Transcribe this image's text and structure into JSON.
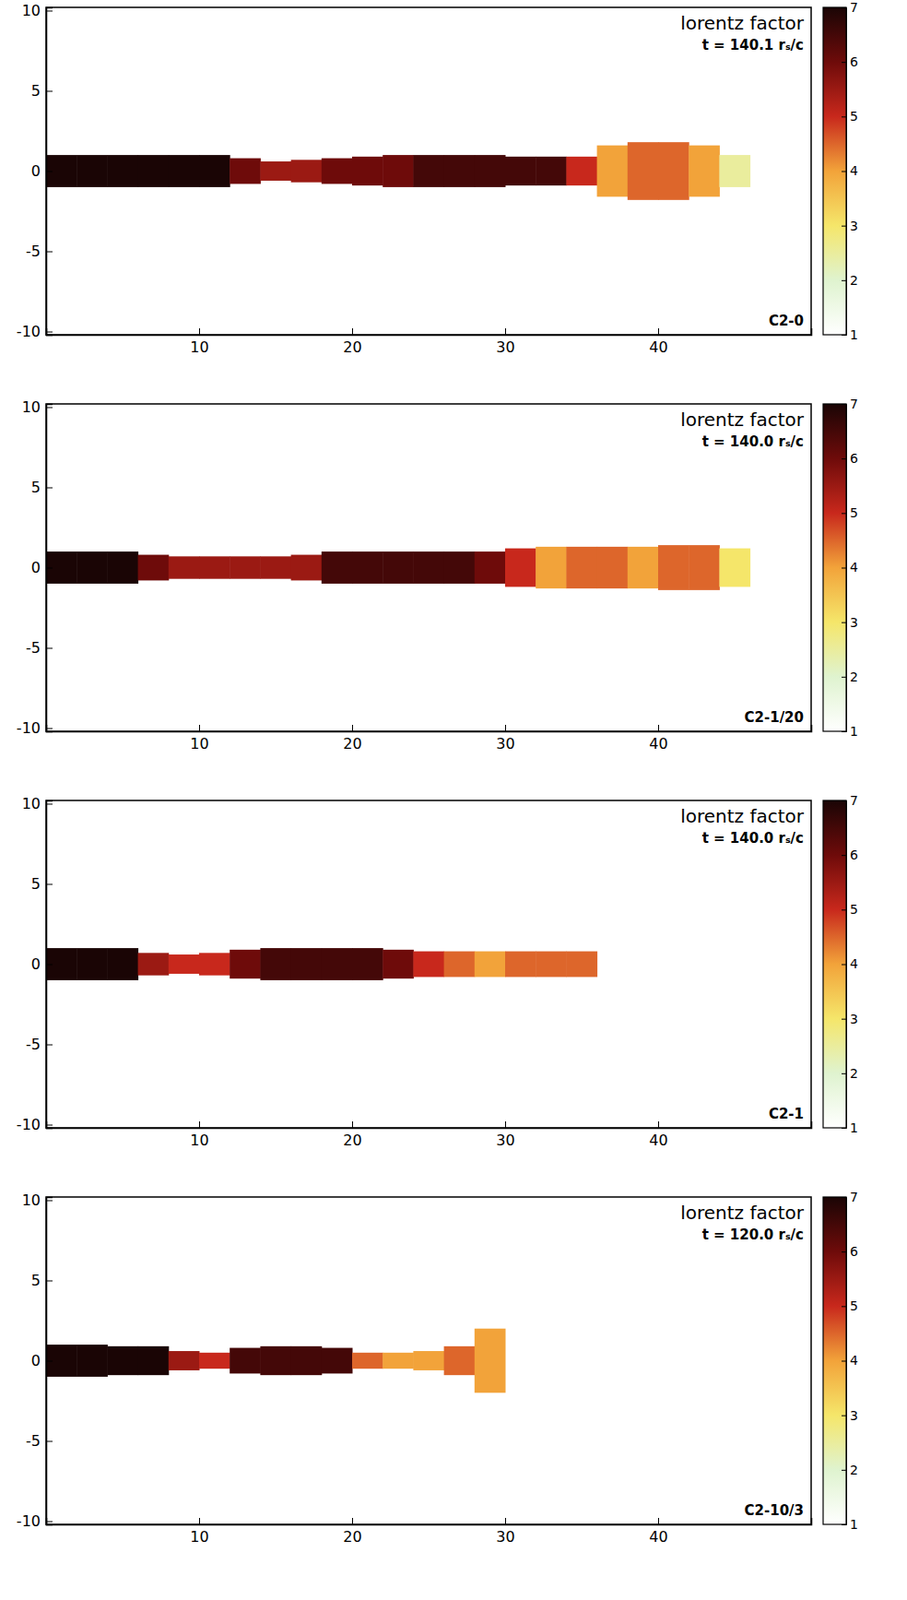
{
  "chart_data": [
    {
      "type": "heatmap",
      "title": "C2-0",
      "subtitle": "lorentz factor",
      "annotation": "t = 140.1 rₛ/c",
      "bins": [
        0,
        2,
        4,
        6,
        8,
        10,
        12,
        14,
        16,
        18,
        20,
        22,
        24,
        26,
        28,
        30,
        32,
        34,
        36,
        38,
        40,
        42,
        44,
        46
      ],
      "values": [
        7,
        7,
        7,
        7,
        7,
        7,
        6,
        5.5,
        5.5,
        6,
        6,
        6,
        6.5,
        6.5,
        6.5,
        6.5,
        6.5,
        5,
        4,
        4.5,
        4.5,
        4,
        2.5
      ],
      "half_width": [
        1,
        1,
        1,
        1,
        1,
        1,
        0.8,
        0.6,
        0.7,
        0.8,
        0.9,
        1,
        1,
        1,
        1,
        0.9,
        0.9,
        0.9,
        1.6,
        1.8,
        1.8,
        1.6,
        1
      ],
      "xlim": [
        0,
        50
      ],
      "ylim": [
        -10.2,
        10.2
      ],
      "xticks": [
        10,
        20,
        30,
        40
      ],
      "yticks": [
        -10,
        -5,
        0,
        5,
        10
      ],
      "zlim": [
        1,
        7
      ],
      "zticks": [
        1,
        2,
        3,
        4,
        5,
        6,
        7
      ]
    },
    {
      "type": "heatmap",
      "title": "C2-1/20",
      "subtitle": "lorentz factor",
      "annotation": "t = 140.0 rₛ/c",
      "bins": [
        0,
        2,
        4,
        6,
        8,
        10,
        12,
        14,
        16,
        18,
        20,
        22,
        24,
        26,
        28,
        30,
        32,
        34,
        36,
        38,
        40,
        42,
        44,
        46
      ],
      "values": [
        7,
        7,
        7,
        6,
        5.5,
        5.5,
        5.5,
        5.5,
        5.5,
        6.5,
        6.5,
        6.5,
        6.5,
        6.5,
        6,
        5,
        4,
        4.5,
        4.5,
        4,
        4.5,
        4.5,
        3
      ],
      "half_width": [
        1,
        1,
        1,
        0.8,
        0.7,
        0.7,
        0.7,
        0.7,
        0.8,
        1,
        1,
        1,
        1,
        1,
        1,
        1.2,
        1.3,
        1.3,
        1.3,
        1.3,
        1.4,
        1.4,
        1.2
      ],
      "xlim": [
        0,
        50
      ],
      "ylim": [
        -10.2,
        10.2
      ],
      "xticks": [
        10,
        20,
        30,
        40
      ],
      "yticks": [
        -10,
        -5,
        0,
        5,
        10
      ],
      "zlim": [
        1,
        7
      ],
      "zticks": [
        1,
        2,
        3,
        4,
        5,
        6,
        7
      ]
    },
    {
      "type": "heatmap",
      "title": "C2-1",
      "subtitle": "lorentz factor",
      "annotation": "t = 140.0 rₛ/c",
      "bins": [
        0,
        2,
        4,
        6,
        8,
        10,
        12,
        14,
        16,
        18,
        20,
        22,
        24,
        26,
        28,
        30,
        32,
        34,
        36
      ],
      "values": [
        7,
        7,
        7,
        5.5,
        5,
        5,
        6,
        6.5,
        6.5,
        6.5,
        6.5,
        6,
        5,
        4.5,
        4,
        4.5,
        4.5,
        4.5
      ],
      "half_width": [
        1,
        1,
        1,
        0.7,
        0.6,
        0.7,
        0.9,
        1,
        1,
        1,
        1,
        0.9,
        0.8,
        0.8,
        0.8,
        0.8,
        0.8,
        0.8
      ],
      "xlim": [
        0,
        50
      ],
      "ylim": [
        -10.2,
        10.2
      ],
      "xticks": [
        10,
        20,
        30,
        40
      ],
      "yticks": [
        -10,
        -5,
        0,
        5,
        10
      ],
      "zlim": [
        1,
        7
      ],
      "zticks": [
        1,
        2,
        3,
        4,
        5,
        6,
        7
      ]
    },
    {
      "type": "heatmap",
      "title": "C2-10/3",
      "subtitle": "lorentz factor",
      "annotation": "t = 120.0 rₛ/c",
      "bins": [
        0,
        2,
        4,
        6,
        8,
        10,
        12,
        14,
        16,
        18,
        20,
        22,
        24,
        26,
        28,
        30
      ],
      "values": [
        7,
        7,
        7,
        7,
        5.5,
        5,
        6.5,
        6.5,
        6.5,
        6.5,
        4.5,
        4,
        4,
        4.5,
        4
      ],
      "half_width": [
        1,
        1,
        0.9,
        0.9,
        0.6,
        0.5,
        0.8,
        0.9,
        0.9,
        0.8,
        0.5,
        0.5,
        0.6,
        0.9,
        2
      ],
      "xlim": [
        0,
        50
      ],
      "ylim": [
        -10.2,
        10.2
      ],
      "xticks": [
        10,
        20,
        30,
        40
      ],
      "yticks": [
        -10,
        -5,
        0,
        5,
        10
      ],
      "zlim": [
        1,
        7
      ],
      "zticks": [
        1,
        2,
        3,
        4,
        5,
        6,
        7
      ]
    }
  ]
}
